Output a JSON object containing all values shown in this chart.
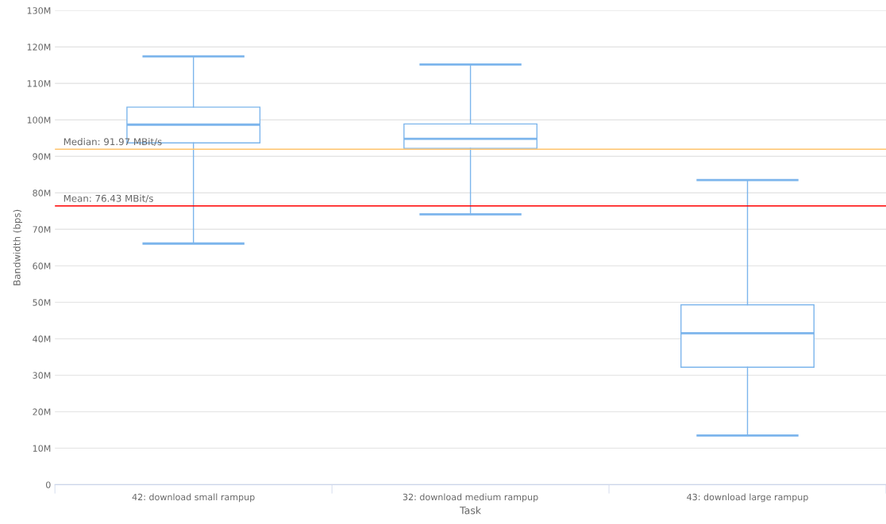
{
  "chart_data": {
    "type": "box",
    "xlabel": "Task",
    "ylabel": "Bandwidth (bps)",
    "categories": [
      "42: download small rampup",
      "32: download medium rampup",
      "43: download large rampup"
    ],
    "boxes": [
      {
        "low": 66.1,
        "q1": 93.7,
        "median": 98.7,
        "q3": 103.5,
        "high": 117.4
      },
      {
        "low": 74.1,
        "q1": 92.2,
        "median": 94.8,
        "q3": 98.9,
        "high": 115.2
      },
      {
        "low": 13.5,
        "q1": 32.2,
        "median": 41.5,
        "q3": 49.3,
        "high": 83.5
      }
    ],
    "color": "#7cb5ec",
    "ylim": [
      0,
      130
    ],
    "yticks": [
      0,
      {
        "value": 10,
        "label": "10M"
      },
      {
        "value": 20,
        "label": "20M"
      },
      {
        "value": 30,
        "label": "30M"
      },
      {
        "value": 40,
        "label": "40M"
      },
      {
        "value": 50,
        "label": "50M"
      },
      {
        "value": 60,
        "label": "60M"
      },
      {
        "value": 70,
        "label": "70M"
      },
      {
        "value": 80,
        "label": "80M"
      },
      {
        "value": 90,
        "label": "90M"
      },
      {
        "value": 100,
        "label": "100M"
      },
      {
        "value": 110,
        "label": "110M"
      },
      {
        "value": 120,
        "label": "120M"
      },
      {
        "value": 130,
        "label": "130M"
      }
    ],
    "ref_lines": [
      {
        "axis": "y",
        "value": 91.97,
        "label": "Median: 91.97 MBit/s",
        "color": "#ffc36b"
      },
      {
        "axis": "y",
        "value": 76.43,
        "label": "Mean: 76.43 MBit/s",
        "color": "#ff0000"
      }
    ],
    "grid": "y",
    "legend": false
  }
}
